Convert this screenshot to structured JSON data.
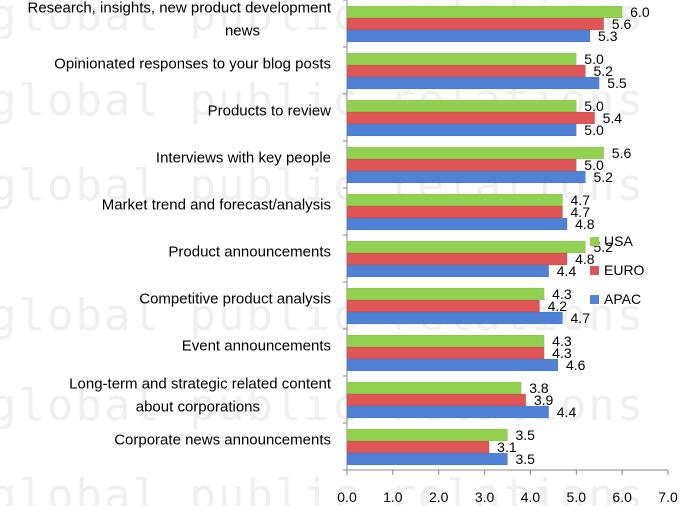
{
  "chart_data": {
    "type": "bar",
    "orientation": "horizontal",
    "categories": [
      [
        "Research, insights, new product development",
        "news"
      ],
      [
        "Opinionated responses to your blog posts"
      ],
      [
        "Products to review"
      ],
      [
        "Interviews with key people"
      ],
      [
        "Market trend and forecast/analysis"
      ],
      [
        "Product announcements"
      ],
      [
        "Competitive product analysis"
      ],
      [
        "Event announcements"
      ],
      [
        "Long-term and strategic related content",
        "about corporations"
      ],
      [
        "Corporate news announcements"
      ]
    ],
    "series": [
      {
        "name": "USA",
        "color": "#92d050",
        "values": [
          6.0,
          5.0,
          5.0,
          5.6,
          4.7,
          5.2,
          4.3,
          4.3,
          3.8,
          3.5
        ]
      },
      {
        "name": "EURO",
        "color": "#e05555",
        "values": [
          5.6,
          5.2,
          5.4,
          5.0,
          4.7,
          4.8,
          4.2,
          4.3,
          3.9,
          3.1
        ]
      },
      {
        "name": "APAC",
        "color": "#4f81d6",
        "values": [
          5.3,
          5.5,
          5.0,
          5.2,
          4.8,
          4.4,
          4.7,
          4.6,
          4.4,
          3.5
        ]
      }
    ],
    "xlim": [
      0,
      7
    ],
    "xticks": [
      "0.0",
      "1.0",
      "2.0",
      "3.0",
      "4.0",
      "5.0",
      "6.0",
      "7.0"
    ],
    "legend_position": "right-middle",
    "grid": false,
    "watermark_text": "global public relations"
  }
}
